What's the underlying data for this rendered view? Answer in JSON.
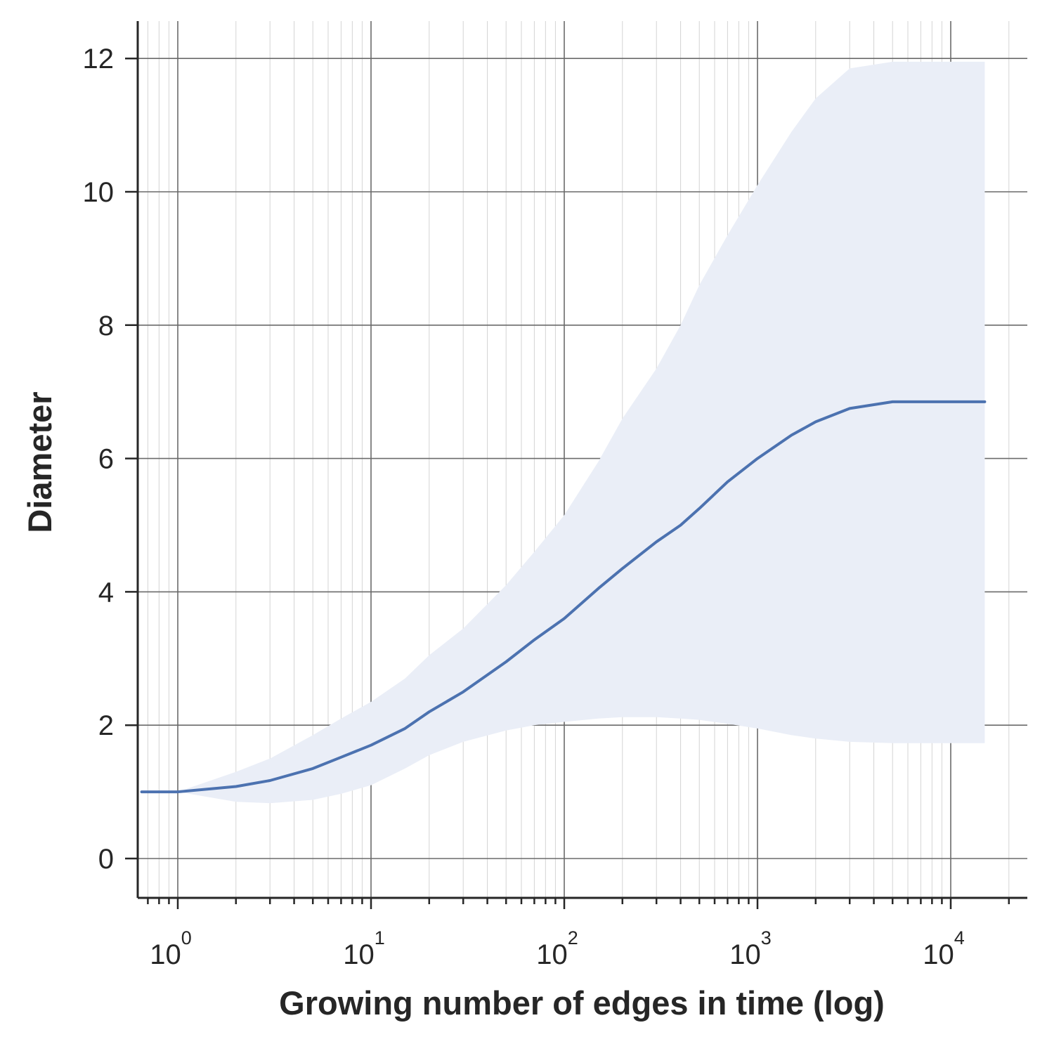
{
  "chart_data": {
    "type": "line",
    "title": "",
    "xlabel": "Growing number of edges in time (log)",
    "ylabel": "Diameter",
    "x_scale": "log",
    "xlim": [
      0.65,
      25000
    ],
    "ylim": [
      -0.6,
      12.6
    ],
    "grid": true,
    "x_ticks": [
      {
        "base": "10",
        "exp": "0"
      },
      {
        "base": "10",
        "exp": "1"
      },
      {
        "base": "10",
        "exp": "2"
      },
      {
        "base": "10",
        "exp": "3"
      },
      {
        "base": "10",
        "exp": "4"
      }
    ],
    "y_ticks": [
      "0",
      "2",
      "4",
      "6",
      "8",
      "10",
      "12"
    ],
    "series": [
      {
        "color": "#4c72b0",
        "band_color": "#eaeef7",
        "x": [
          0.65,
          1,
          2,
          3,
          5,
          7,
          10,
          15,
          20,
          30,
          50,
          70,
          100,
          150,
          200,
          300,
          400,
          500,
          700,
          1000,
          1500,
          2000,
          3000,
          5000,
          10000,
          15000
        ],
        "y": [
          1.0,
          1.0,
          1.08,
          1.17,
          1.35,
          1.52,
          1.7,
          1.95,
          2.2,
          2.5,
          2.95,
          3.28,
          3.6,
          4.05,
          4.35,
          4.75,
          5.0,
          5.25,
          5.65,
          6.0,
          6.35,
          6.55,
          6.75,
          6.85,
          6.85,
          6.85
        ],
        "lower": [
          1.0,
          1.0,
          0.85,
          0.83,
          0.88,
          0.97,
          1.1,
          1.35,
          1.55,
          1.75,
          1.92,
          2.0,
          2.05,
          2.1,
          2.12,
          2.12,
          2.1,
          2.08,
          2.02,
          1.95,
          1.85,
          1.8,
          1.75,
          1.73,
          1.73,
          1.73
        ],
        "upper": [
          1.0,
          1.0,
          1.3,
          1.5,
          1.85,
          2.1,
          2.35,
          2.7,
          3.05,
          3.45,
          4.1,
          4.6,
          5.15,
          5.95,
          6.6,
          7.35,
          8.0,
          8.6,
          9.35,
          10.1,
          10.9,
          11.4,
          11.85,
          11.95,
          11.95,
          11.95
        ]
      }
    ]
  }
}
